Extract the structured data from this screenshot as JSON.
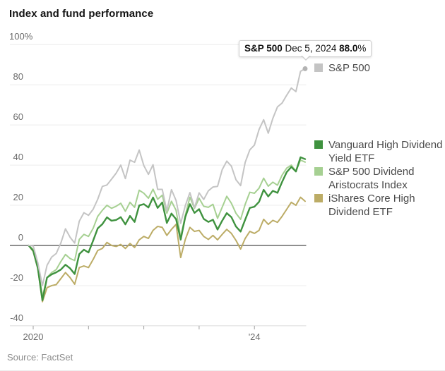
{
  "page": {
    "title": "Index and fund performance",
    "source": "Source: FactSet"
  },
  "tooltip": {
    "series": "S&P 500",
    "date": " Dec 5, 2024 ",
    "value": "88.0",
    "suffix": "%"
  },
  "colors": {
    "sp500": "#c4c4c4",
    "vym": "#3f923f",
    "nobl": "#a6d092",
    "hdv": "#bcac66",
    "zero_line": "#8f8f8f",
    "gridline": "#ececec",
    "axis_line": "#dcdcdc",
    "tick": "#9e9e9e",
    "endpoint_dot": "#b3b3b3"
  },
  "chart_data": {
    "type": "line",
    "title": "Index and fund performance",
    "x_unit": "month",
    "x_range": [
      "Dec 2019",
      "Dec 5, 2024"
    ],
    "ylim": [
      -40,
      100
    ],
    "grid": "horizontal",
    "legend_position": "right",
    "y_ticks": [
      {
        "value": 100,
        "label": "100%"
      },
      {
        "value": 80,
        "label": "80"
      },
      {
        "value": 60,
        "label": "60"
      },
      {
        "value": 40,
        "label": "40"
      },
      {
        "value": 20,
        "label": "20"
      },
      {
        "value": 0,
        "label": "0"
      },
      {
        "value": -20,
        "label": "-20"
      },
      {
        "value": -40,
        "label": "-40"
      }
    ],
    "x_ticks": [
      {
        "month_index": 1,
        "label": "2020"
      },
      {
        "month_index": 13,
        "label": ""
      },
      {
        "month_index": 25,
        "label": ""
      },
      {
        "month_index": 37,
        "label": ""
      },
      {
        "month_index": 49,
        "label": "'24"
      }
    ],
    "series": [
      {
        "id": "sp500",
        "name": "S&P 500",
        "color": "#c4c4c4",
        "width": 2,
        "endpoint_marker": true,
        "values": [
          0,
          -0.2,
          -8.6,
          -20.0,
          -9.9,
          -5.8,
          -4.0,
          1.2,
          8.3,
          4.1,
          1.2,
          12.1,
          16.3,
          15.0,
          18.0,
          23.0,
          29.4,
          30.1,
          33.0,
          36.0,
          40.0,
          33.3,
          42.5,
          41.4,
          47.5,
          39.8,
          35.4,
          40.2,
          27.9,
          27.9,
          17.2,
          27.8,
          22.4,
          11.0,
          19.8,
          26.3,
          18.8,
          26.2,
          22.9,
          27.2,
          29.1,
          29.4,
          37.7,
          42.0,
          39.5,
          32.7,
          29.8,
          41.4,
          47.6,
          50.0,
          57.7,
          62.6,
          55.9,
          63.3,
          69.0,
          70.9,
          74.8,
          78.4,
          76.6,
          86.7,
          88.0
        ]
      },
      {
        "id": "vym",
        "name": "Vanguard High Dividend Yield ETF",
        "color": "#3f923f",
        "width": 2.4,
        "endpoint_marker": false,
        "values": [
          0,
          -2.6,
          -11.2,
          -27.3,
          -16.0,
          -14.4,
          -13.4,
          -12.0,
          -9.6,
          -11.4,
          -14.2,
          -4.3,
          -2.1,
          -3.5,
          2.4,
          8.5,
          10.6,
          14.0,
          12.3,
          12.7,
          14.1,
          10.5,
          14.7,
          11.7,
          19.9,
          20.6,
          18.9,
          23.9,
          18.7,
          21.4,
          11.2,
          15.9,
          13.1,
          2.9,
          14.2,
          20.6,
          16.2,
          18.1,
          13.2,
          11.7,
          12.8,
          7.9,
          12.3,
          16.1,
          14.1,
          9.4,
          6.9,
          12.9,
          18.7,
          19.3,
          21.7,
          27.7,
          24.4,
          27.2,
          26.2,
          31.6,
          36.5,
          39.1,
          36.8,
          43.9,
          43.0
        ]
      },
      {
        "id": "nobl",
        "name": "S&P 500 Dividend Aristocrats Index",
        "color": "#a6d092",
        "width": 2,
        "endpoint_marker": false,
        "values": [
          0,
          -2.0,
          -10.5,
          -25.5,
          -16.0,
          -13.5,
          -12.0,
          -8.0,
          -4.5,
          -6.5,
          -7.5,
          3.0,
          5.5,
          4.5,
          8.5,
          14.5,
          17.5,
          20.0,
          18.5,
          19.5,
          21.0,
          17.0,
          21.5,
          19.0,
          27.5,
          26.0,
          23.5,
          28.0,
          23.0,
          25.0,
          16.0,
          22.0,
          17.5,
          4.0,
          15.0,
          24.0,
          18.5,
          23.5,
          19.5,
          19.0,
          20.5,
          13.5,
          19.0,
          24.5,
          21.0,
          16.0,
          13.0,
          20.5,
          26.5,
          26.0,
          28.5,
          33.5,
          29.5,
          31.5,
          30.0,
          35.0,
          38.5,
          40.0,
          37.0,
          42.5,
          41.5
        ]
      },
      {
        "id": "hdv",
        "name": "iShares Core High Dividend ETF",
        "color": "#bcac66",
        "width": 2,
        "endpoint_marker": false,
        "values": [
          0,
          -3.0,
          -11.5,
          -28.0,
          -21.0,
          -20.0,
          -19.5,
          -16.5,
          -13.5,
          -16.0,
          -19.3,
          -11.0,
          -10.2,
          -11.0,
          -7.0,
          -2.5,
          -1.5,
          1.5,
          0.0,
          -0.5,
          0.5,
          -1.5,
          1.0,
          -1.0,
          2.8,
          4.5,
          3.5,
          7.5,
          9.5,
          9.0,
          5.0,
          8.0,
          10.5,
          -6.0,
          3.0,
          9.0,
          7.0,
          7.5,
          4.5,
          3.0,
          5.0,
          2.8,
          5.5,
          8.0,
          6.0,
          2.5,
          -1.8,
          3.5,
          7.0,
          6.0,
          7.5,
          13.0,
          10.5,
          12.5,
          11.5,
          14.5,
          18.0,
          21.5,
          20.0,
          24.0,
          22.0
        ]
      }
    ]
  }
}
